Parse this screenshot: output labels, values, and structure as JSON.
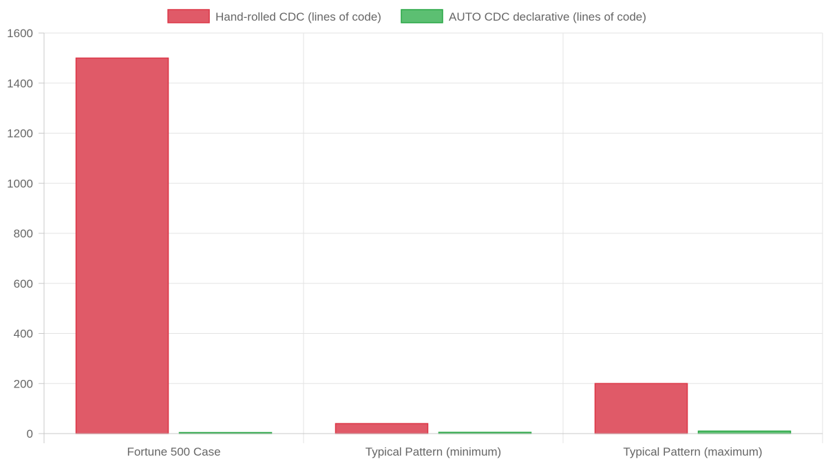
{
  "chart_data": {
    "type": "bar",
    "categories": [
      "Fortune 500 Case",
      "Typical Pattern (minimum)",
      "Typical Pattern (maximum)"
    ],
    "series": [
      {
        "name": "Hand-rolled CDC (lines of code)",
        "values": [
          1500,
          40,
          200
        ],
        "fill": "#e05a68",
        "border": "#dc3545"
      },
      {
        "name": "AUTO CDC declarative (lines of code)",
        "values": [
          3,
          5,
          10
        ],
        "fill": "#5cbf72",
        "border": "#28a745"
      }
    ],
    "title": "",
    "xlabel": "",
    "ylabel": "",
    "ylim": [
      0,
      1600
    ],
    "yticks": [
      0,
      200,
      400,
      600,
      800,
      1000,
      1200,
      1400,
      1600
    ],
    "grid": true,
    "legend_position": "top"
  }
}
